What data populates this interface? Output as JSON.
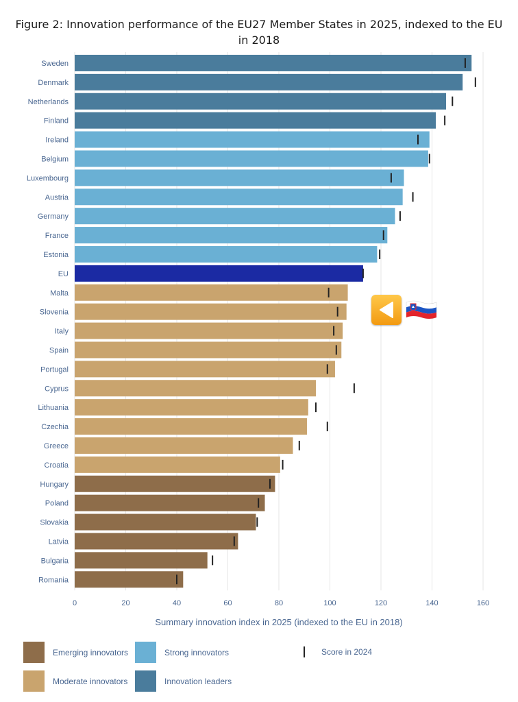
{
  "title": "Figure 2: Innovation performance of the EU27 Member States in 2025, indexed to the EU in 2018",
  "colors": {
    "leader": "#4a7c9c",
    "strong": "#6ab0d4",
    "eu": "#1b2aa3",
    "moderate": "#c9a46e",
    "emerging": "#8e6d4a",
    "marker": "#222222",
    "grid": "#e6e6e6"
  },
  "chart_data": {
    "type": "bar",
    "orientation": "horizontal",
    "title": "Figure 2: Innovation performance of the EU27 Member States in 2025, indexed to the EU in 2018",
    "xlabel": "Summary innovation index in 2025 (indexed to the EU in 2018)",
    "ylabel": "",
    "xlim": [
      0,
      160
    ],
    "xticks": [
      0,
      20,
      40,
      60,
      80,
      100,
      120,
      140,
      160
    ],
    "grid": true,
    "categories": [
      "Sweden",
      "Denmark",
      "Netherlands",
      "Finland",
      "Ireland",
      "Belgium",
      "Luxembourg",
      "Austria",
      "Germany",
      "France",
      "Estonia",
      "EU",
      "Malta",
      "Slovenia",
      "Italy",
      "Spain",
      "Portugal",
      "Cyprus",
      "Lithuania",
      "Czechia",
      "Greece",
      "Croatia",
      "Hungary",
      "Poland",
      "Slovakia",
      "Latvia",
      "Bulgaria",
      "Romania"
    ],
    "series": [
      {
        "name": "Score in 2025",
        "values": [
          155.5,
          152,
          145.5,
          141.5,
          139,
          138.5,
          129,
          128.5,
          125.5,
          122.5,
          118.5,
          113,
          107,
          106.5,
          105,
          104.5,
          102,
          94.5,
          91.5,
          91,
          85.5,
          80.5,
          78.5,
          74.5,
          71,
          64,
          52,
          42.5
        ]
      },
      {
        "name": "Score in 2024",
        "values": [
          153,
          157,
          148,
          145,
          134.5,
          139,
          124,
          132.5,
          127.5,
          121,
          119.5,
          113,
          99.5,
          103,
          101.5,
          102.5,
          99,
          109.5,
          94.5,
          99,
          88,
          81.5,
          76.5,
          72,
          71.5,
          62.5,
          54,
          40
        ]
      }
    ],
    "groups": [
      "leader",
      "leader",
      "leader",
      "leader",
      "strong",
      "strong",
      "strong",
      "strong",
      "strong",
      "strong",
      "strong",
      "eu",
      "moderate",
      "moderate",
      "moderate",
      "moderate",
      "moderate",
      "moderate",
      "moderate",
      "moderate",
      "moderate",
      "moderate",
      "emerging",
      "emerging",
      "emerging",
      "emerging",
      "emerging",
      "emerging"
    ],
    "legend": [
      {
        "key": "emerging",
        "label": "Emerging innovators"
      },
      {
        "key": "strong",
        "label": "Strong innovators"
      },
      {
        "key": "marker",
        "label": "Score in 2024"
      },
      {
        "key": "moderate",
        "label": "Moderate innovators"
      },
      {
        "key": "leader",
        "label": "Innovation leaders"
      }
    ],
    "legend_position": "bottom"
  },
  "annotation": {
    "icon": "left-arrow-icon",
    "flag": "slovenia-flag-icon",
    "points_to": "Slovenia"
  }
}
